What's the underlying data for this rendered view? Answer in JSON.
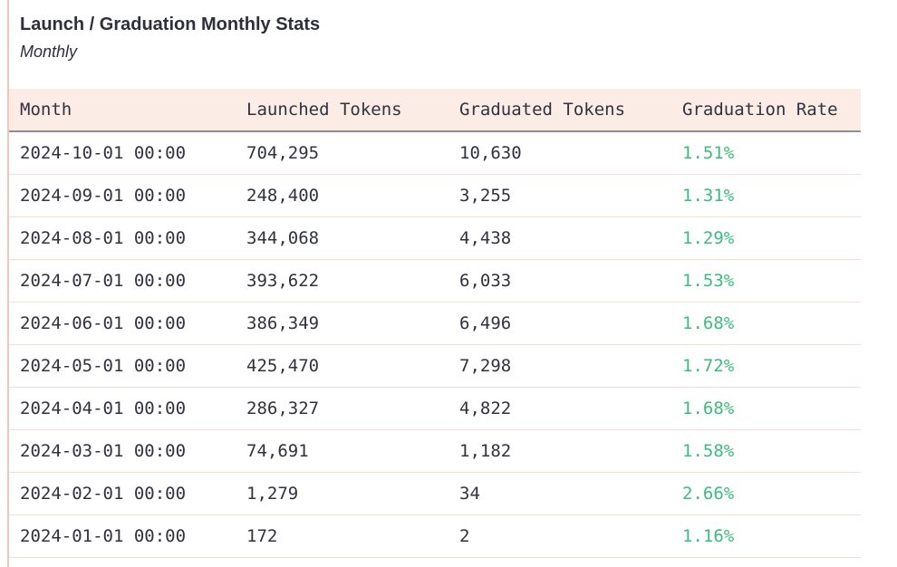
{
  "header": {
    "title": "Launch / Graduation Monthly Stats",
    "subtitle": "Monthly"
  },
  "table": {
    "columns": [
      "Month",
      "Launched Tokens",
      "Graduated Tokens",
      "Graduation Rate"
    ],
    "rows": [
      {
        "month": "2024-10-01 00:00",
        "launched": "704,295",
        "graduated": "10,630",
        "rate": "1.51%"
      },
      {
        "month": "2024-09-01 00:00",
        "launched": "248,400",
        "graduated": "3,255",
        "rate": "1.31%"
      },
      {
        "month": "2024-08-01 00:00",
        "launched": "344,068",
        "graduated": "4,438",
        "rate": "1.29%"
      },
      {
        "month": "2024-07-01 00:00",
        "launched": "393,622",
        "graduated": "6,033",
        "rate": "1.53%"
      },
      {
        "month": "2024-06-01 00:00",
        "launched": "386,349",
        "graduated": "6,496",
        "rate": "1.68%"
      },
      {
        "month": "2024-05-01 00:00",
        "launched": "425,470",
        "graduated": "7,298",
        "rate": "1.72%"
      },
      {
        "month": "2024-04-01 00:00",
        "launched": "286,327",
        "graduated": "4,822",
        "rate": "1.68%"
      },
      {
        "month": "2024-03-01 00:00",
        "launched": "74,691",
        "graduated": "1,182",
        "rate": "1.58%"
      },
      {
        "month": "2024-02-01 00:00",
        "launched": "1,279",
        "graduated": "34",
        "rate": "2.66%"
      },
      {
        "month": "2024-01-01 00:00",
        "launched": "172",
        "graduated": "2",
        "rate": "1.16%"
      }
    ]
  },
  "colors": {
    "rate_green": "#3cbc7c",
    "header_bg": "#fbece5",
    "row_separator": "#f8ddd2",
    "header_separator": "#8e8e96",
    "accent_line": "#f0c6b8",
    "text_dark": "#32323f"
  },
  "chart_data": {
    "type": "table",
    "title": "Launch / Graduation Monthly Stats",
    "subtitle": "Monthly",
    "columns": [
      "Month",
      "Launched Tokens",
      "Graduated Tokens",
      "Graduation Rate"
    ],
    "months": [
      "2024-10-01 00:00",
      "2024-09-01 00:00",
      "2024-08-01 00:00",
      "2024-07-01 00:00",
      "2024-06-01 00:00",
      "2024-05-01 00:00",
      "2024-04-01 00:00",
      "2024-03-01 00:00",
      "2024-02-01 00:00",
      "2024-01-01 00:00"
    ],
    "series": [
      {
        "name": "Launched Tokens",
        "values": [
          704295,
          248400,
          344068,
          393622,
          386349,
          425470,
          286327,
          74691,
          1279,
          172
        ]
      },
      {
        "name": "Graduated Tokens",
        "values": [
          10630,
          3255,
          4438,
          6033,
          6496,
          7298,
          4822,
          1182,
          34,
          2
        ]
      },
      {
        "name": "Graduation Rate (%)",
        "values": [
          1.51,
          1.31,
          1.29,
          1.53,
          1.68,
          1.72,
          1.68,
          1.58,
          2.66,
          1.16
        ]
      }
    ]
  }
}
